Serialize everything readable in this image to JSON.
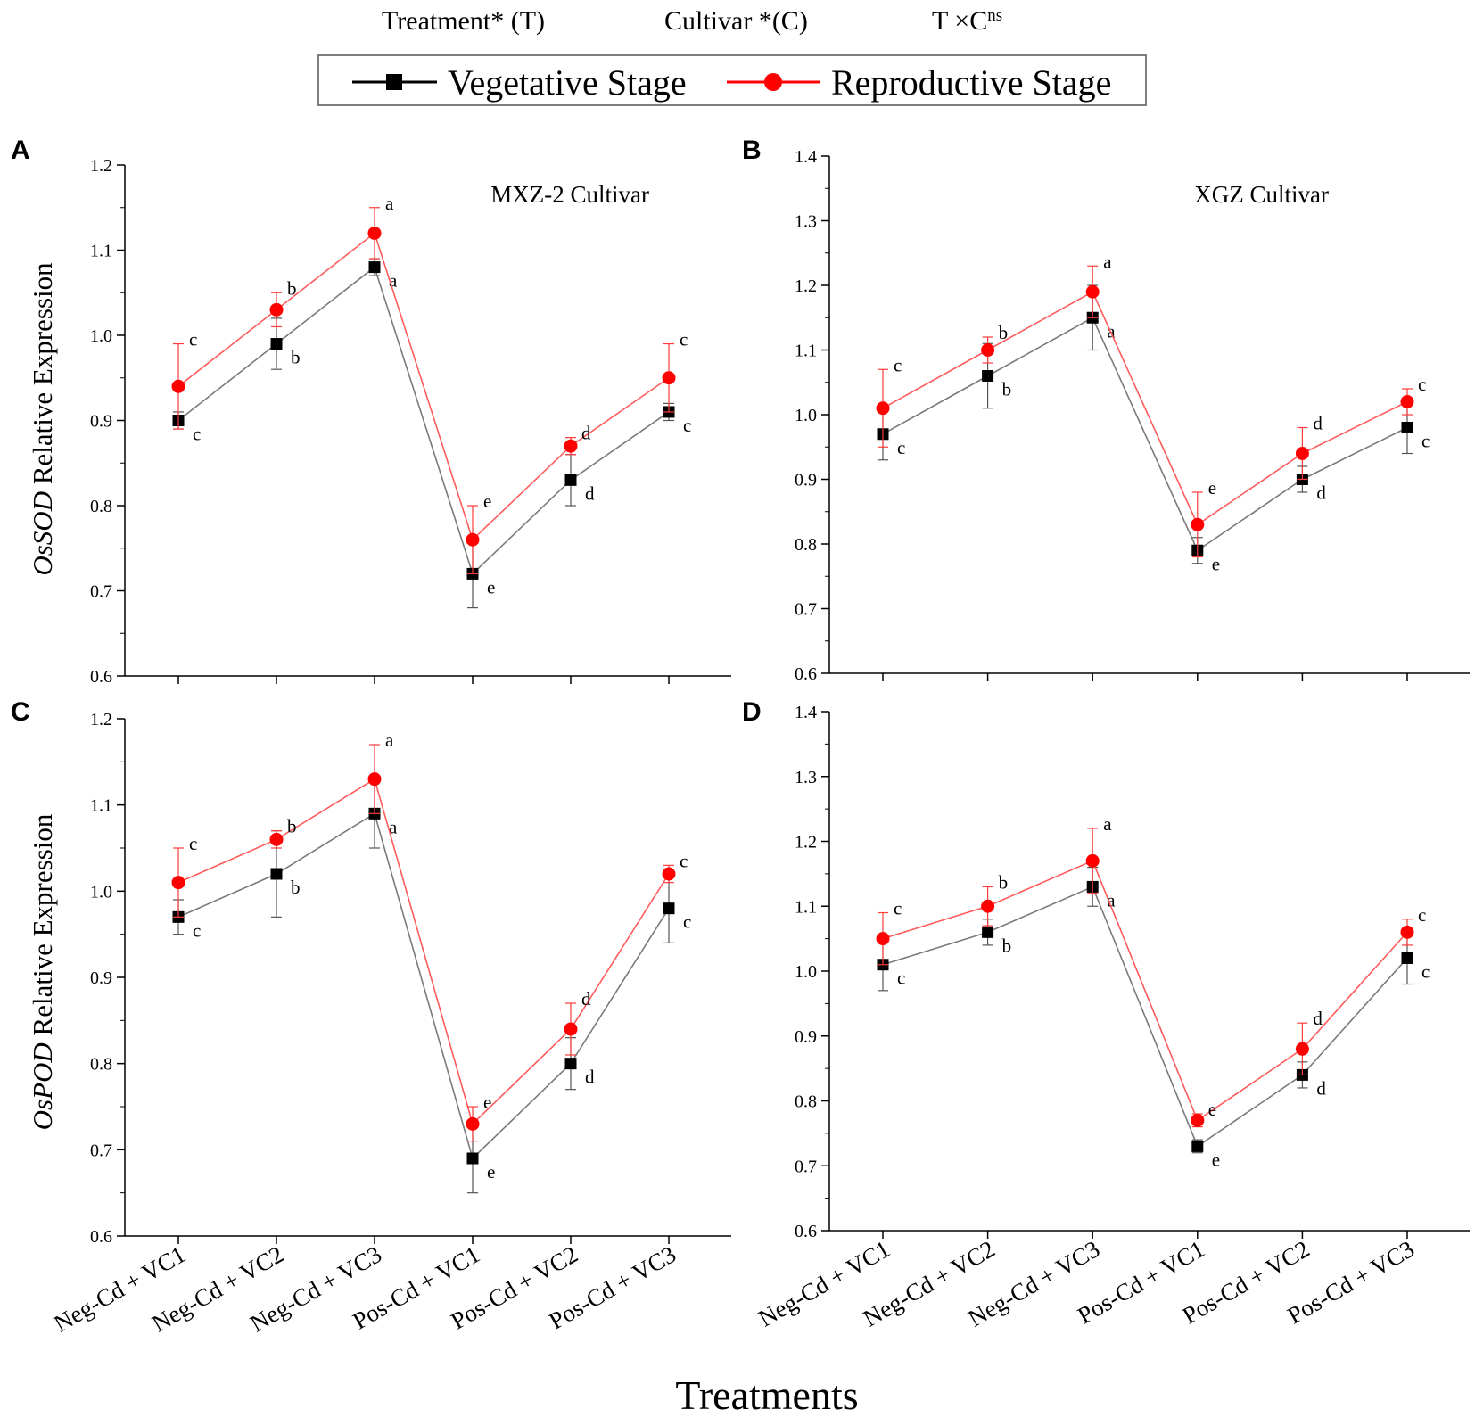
{
  "header": {
    "treatment_label": "Treatment* (T)",
    "cultivar_label": "Cultivar *(C)",
    "interaction_label": "T ×C",
    "interaction_sup": "ns"
  },
  "legend": {
    "series": [
      {
        "name": "Vegetative Stage",
        "color": "#000000",
        "line_color": "#7a7a7a",
        "marker": "square"
      },
      {
        "name": "Reproductive Stage",
        "color": "#ff0000",
        "line_color": "#ff5b5b",
        "marker": "circle"
      }
    ]
  },
  "axis_titles": {
    "x": "Treatments",
    "y_top_gene": "OsSOD",
    "y_bottom_gene": "OsPOD",
    "y_suffix": " Relative Expression"
  },
  "chart_data": [
    {
      "panel": "A",
      "type": "line",
      "title": "MXZ-2 Cultivar",
      "ylabel": "OsSOD Relative Expression",
      "xlabel": "Treatments",
      "ylim": [
        0.6,
        1.2
      ],
      "yticks": [
        "0.6",
        "0.7",
        "0.8",
        "0.9",
        "1.0",
        "1.1",
        "1.2"
      ],
      "categories": [
        "Neg-Cd + VC1",
        "Neg-Cd + VC2",
        "Neg-Cd + VC3",
        "Pos-Cd + VC1",
        "Pos-Cd + VC2",
        "Pos-Cd + VC3"
      ],
      "series": [
        {
          "name": "Vegetative Stage",
          "values": [
            0.9,
            0.99,
            1.08,
            0.72,
            0.83,
            0.91
          ],
          "errors": [
            0.01,
            0.03,
            0.01,
            0.04,
            0.03,
            0.01
          ],
          "letters": [
            "c",
            "b",
            "a",
            "e",
            "d",
            "c"
          ]
        },
        {
          "name": "Reproductive Stage",
          "values": [
            0.94,
            1.03,
            1.12,
            0.76,
            0.87,
            0.95
          ],
          "errors": [
            0.05,
            0.02,
            0.03,
            0.04,
            0.01,
            0.04
          ],
          "letters": [
            "c",
            "b",
            "a",
            "e",
            "d",
            "c"
          ]
        }
      ]
    },
    {
      "panel": "B",
      "type": "line",
      "title": "XGZ Cultivar",
      "ylabel": "",
      "xlabel": "Treatments",
      "ylim": [
        0.6,
        1.4
      ],
      "yticks": [
        "0.6",
        "0.7",
        "0.8",
        "0.9",
        "1.0",
        "1.1",
        "1.2",
        "1.3",
        "1.4"
      ],
      "categories": [
        "Neg-Cd + VC1",
        "Neg-Cd + VC2",
        "Neg-Cd + VC3",
        "Pos-Cd + VC1",
        "Pos-Cd + VC2",
        "Pos-Cd + VC3"
      ],
      "series": [
        {
          "name": "Vegetative Stage",
          "values": [
            0.97,
            1.06,
            1.15,
            0.79,
            0.9,
            0.98
          ],
          "errors": [
            0.04,
            0.05,
            0.05,
            0.02,
            0.02,
            0.04
          ],
          "letters": [
            "c",
            "b",
            "a",
            "e",
            "d",
            "c"
          ]
        },
        {
          "name": "Reproductive Stage",
          "values": [
            1.01,
            1.1,
            1.19,
            0.83,
            0.94,
            1.02
          ],
          "errors": [
            0.06,
            0.02,
            0.04,
            0.05,
            0.04,
            0.02
          ],
          "letters": [
            "c",
            "b",
            "a",
            "e",
            "d",
            "c"
          ]
        }
      ]
    },
    {
      "panel": "C",
      "type": "line",
      "title": "",
      "ylabel": "OsPOD Relative Expression",
      "xlabel": "Treatments",
      "ylim": [
        0.6,
        1.2
      ],
      "yticks": [
        "0.6",
        "0.7",
        "0.8",
        "0.9",
        "1.0",
        "1.1",
        "1.2"
      ],
      "categories": [
        "Neg-Cd + VC1",
        "Neg-Cd + VC2",
        "Neg-Cd + VC3",
        "Pos-Cd + VC1",
        "Pos-Cd + VC2",
        "Pos-Cd + VC3"
      ],
      "series": [
        {
          "name": "Vegetative Stage",
          "values": [
            0.97,
            1.02,
            1.09,
            0.69,
            0.8,
            0.98
          ],
          "errors": [
            0.02,
            0.05,
            0.04,
            0.04,
            0.03,
            0.04
          ],
          "letters": [
            "c",
            "b",
            "a",
            "e",
            "d",
            "c"
          ]
        },
        {
          "name": "Reproductive Stage",
          "values": [
            1.01,
            1.06,
            1.13,
            0.73,
            0.84,
            1.02
          ],
          "errors": [
            0.04,
            0.01,
            0.04,
            0.02,
            0.03,
            0.01
          ],
          "letters": [
            "c",
            "b",
            "a",
            "e",
            "d",
            "c"
          ]
        }
      ]
    },
    {
      "panel": "D",
      "type": "line",
      "title": "",
      "ylabel": "",
      "xlabel": "Treatments",
      "ylim": [
        0.6,
        1.4
      ],
      "yticks": [
        "0.6",
        "0.7",
        "0.8",
        "0.9",
        "1.0",
        "1.1",
        "1.2",
        "1.3",
        "1.4"
      ],
      "categories": [
        "Neg-Cd + VC1",
        "Neg-Cd + VC2",
        "Neg-Cd + VC3",
        "Pos-Cd + VC1",
        "Pos-Cd + VC2",
        "Pos-Cd + VC3"
      ],
      "series": [
        {
          "name": "Vegetative Stage",
          "values": [
            1.01,
            1.06,
            1.13,
            0.73,
            0.84,
            1.02
          ],
          "errors": [
            0.04,
            0.02,
            0.03,
            0.01,
            0.02,
            0.04
          ],
          "letters": [
            "c",
            "b",
            "a",
            "e",
            "d",
            "c"
          ]
        },
        {
          "name": "Reproductive Stage",
          "values": [
            1.05,
            1.1,
            1.17,
            0.77,
            0.88,
            1.06
          ],
          "errors": [
            0.04,
            0.03,
            0.05,
            0.01,
            0.04,
            0.02
          ],
          "letters": [
            "c",
            "b",
            "a",
            "e",
            "d",
            "c"
          ]
        }
      ]
    }
  ]
}
